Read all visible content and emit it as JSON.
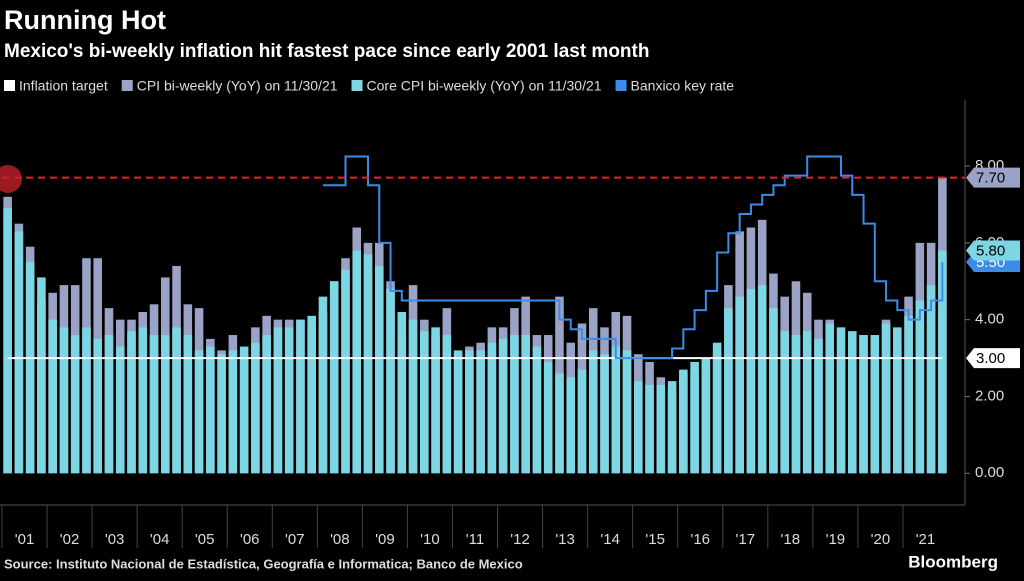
{
  "chart_data": {
    "type": "bar",
    "title": "Running Hot",
    "subtitle": "Mexico's bi-weekly inflation hit fastest pace since early 2001 last month",
    "source": "Source: Instituto Nacional de Estadística, Geografía e Informatica; Banco de Mexico",
    "brand": "Bloomberg",
    "categories": [
      "'01",
      null,
      null,
      null,
      "'02",
      null,
      null,
      null,
      "'03",
      null,
      null,
      null,
      "'04",
      null,
      null,
      null,
      "'05",
      null,
      null,
      null,
      "'06",
      null,
      null,
      null,
      "'07",
      null,
      null,
      null,
      "'08",
      null,
      null,
      null,
      "'09",
      null,
      null,
      null,
      "'10",
      null,
      null,
      null,
      "'11",
      null,
      null,
      null,
      "'12",
      null,
      null,
      null,
      "'13",
      null,
      null,
      null,
      "'14",
      null,
      null,
      null,
      "'15",
      null,
      null,
      null,
      "'16",
      null,
      null,
      null,
      "'17",
      null,
      null,
      null,
      "'18",
      null,
      null,
      null,
      "'19",
      null,
      null,
      null,
      "'20",
      null,
      null,
      null,
      "'21",
      null,
      null,
      null
    ],
    "ylim": [
      -0.8,
      9.72
    ],
    "yticks": [
      {
        "value": 0,
        "label": "0.00"
      },
      {
        "value": 2,
        "label": "2.00"
      },
      {
        "value": 4,
        "label": "4.00"
      },
      {
        "value": 6,
        "label": "6.00"
      },
      {
        "value": 8,
        "label": "8.00"
      }
    ],
    "series": [
      {
        "name": "Inflation target",
        "type": "line",
        "color": "#ffffff",
        "values": [
          3,
          3,
          3,
          3,
          3,
          3,
          3,
          3,
          3,
          3,
          3,
          3,
          3,
          3,
          3,
          3,
          3,
          3,
          3,
          3,
          3,
          3,
          3,
          3,
          3,
          3,
          3,
          3,
          3,
          3,
          3,
          3,
          3,
          3,
          3,
          3,
          3,
          3,
          3,
          3,
          3,
          3,
          3,
          3,
          3,
          3,
          3,
          3,
          3,
          3,
          3,
          3,
          3,
          3,
          3,
          3,
          3,
          3,
          3,
          3,
          3,
          3,
          3,
          3,
          3,
          3,
          3,
          3,
          3,
          3,
          3,
          3,
          3,
          3,
          3,
          3,
          3,
          3,
          3,
          3,
          3,
          3,
          3,
          3
        ],
        "value_labels": [
          null,
          null,
          null,
          null,
          null,
          null,
          null,
          null,
          null,
          null,
          null,
          null,
          null,
          null,
          null,
          null,
          null,
          null,
          null,
          null,
          null,
          null,
          null,
          null,
          null,
          null,
          null,
          null,
          null,
          null,
          null,
          null,
          null,
          null,
          null,
          null,
          null,
          null,
          null,
          null,
          null,
          null,
          null,
          null,
          null,
          null,
          null,
          null,
          null,
          null,
          null,
          null,
          null,
          null,
          null,
          null,
          null,
          null,
          null,
          null,
          null,
          null,
          null,
          null,
          null,
          null,
          null,
          null,
          null,
          null,
          null,
          null,
          null,
          null,
          null,
          null,
          null,
          null,
          null,
          null,
          null,
          null,
          null,
          "3.00"
        ]
      },
      {
        "name": "CPI bi-weekly (YoY) on 11/30/21",
        "type": "bar",
        "color": "#9aa3c6",
        "values": [
          7.2,
          6.5,
          5.9,
          4.5,
          4.7,
          4.9,
          4.9,
          5.6,
          5.6,
          4.3,
          4.0,
          4.0,
          4.2,
          4.4,
          5.1,
          5.4,
          4.4,
          4.3,
          3.5,
          3.2,
          3.6,
          3.1,
          3.8,
          4.1,
          4.0,
          4.0,
          4.0,
          3.8,
          4.2,
          5.0,
          5.6,
          6.4,
          6.0,
          6.0,
          5.0,
          3.6,
          4.9,
          4.0,
          3.6,
          4.3,
          3.1,
          3.3,
          3.4,
          3.8,
          3.8,
          4.3,
          4.6,
          3.6,
          3.6,
          4.6,
          3.4,
          3.9,
          4.3,
          3.8,
          4.2,
          4.1,
          3.1,
          2.9,
          2.5,
          2.2,
          2.6,
          2.6,
          2.9,
          3.2,
          4.9,
          6.3,
          6.4,
          6.6,
          5.2,
          4.6,
          5.0,
          4.7,
          4.0,
          4.0,
          3.0,
          2.8,
          3.6,
          2.7,
          4.0,
          3.2,
          4.6,
          6.0,
          6.0,
          7.7
        ],
        "value_labels": [
          null,
          null,
          null,
          null,
          null,
          null,
          null,
          null,
          null,
          null,
          null,
          null,
          null,
          null,
          null,
          null,
          null,
          null,
          null,
          null,
          null,
          null,
          null,
          null,
          null,
          null,
          null,
          null,
          null,
          null,
          null,
          null,
          null,
          null,
          null,
          null,
          null,
          null,
          null,
          null,
          null,
          null,
          null,
          null,
          null,
          null,
          null,
          null,
          null,
          null,
          null,
          null,
          null,
          null,
          null,
          null,
          null,
          null,
          null,
          null,
          null,
          null,
          null,
          null,
          null,
          null,
          null,
          null,
          null,
          null,
          null,
          null,
          null,
          null,
          null,
          null,
          null,
          null,
          null,
          null,
          null,
          null,
          null,
          "7.70"
        ]
      },
      {
        "name": "Core CPI bi-weekly (YoY) on 11/30/21",
        "type": "bar",
        "color": "#7dd6e3",
        "values": [
          6.9,
          6.3,
          5.5,
          5.1,
          4.0,
          3.8,
          3.6,
          3.8,
          3.5,
          3.6,
          3.3,
          3.7,
          3.8,
          3.6,
          3.6,
          3.8,
          3.6,
          3.2,
          3.3,
          3.1,
          3.2,
          3.3,
          3.4,
          3.6,
          3.8,
          3.8,
          4.0,
          4.1,
          4.6,
          5.0,
          5.3,
          5.8,
          5.7,
          5.4,
          4.8,
          4.2,
          4.0,
          3.7,
          3.8,
          3.6,
          3.2,
          3.2,
          3.2,
          3.4,
          3.5,
          3.6,
          3.6,
          3.3,
          2.9,
          2.6,
          2.5,
          2.7,
          3.2,
          3.1,
          3.3,
          3.2,
          2.4,
          2.3,
          2.3,
          2.4,
          2.7,
          2.9,
          3.0,
          3.4,
          4.3,
          4.6,
          4.8,
          4.9,
          4.3,
          3.7,
          3.6,
          3.7,
          3.5,
          3.9,
          3.8,
          3.7,
          3.6,
          3.6,
          3.9,
          3.8,
          4.1,
          4.5,
          4.9,
          5.8
        ],
        "value_labels": [
          null,
          null,
          null,
          null,
          null,
          null,
          null,
          null,
          null,
          null,
          null,
          null,
          null,
          null,
          null,
          null,
          null,
          null,
          null,
          null,
          null,
          null,
          null,
          null,
          null,
          null,
          null,
          null,
          null,
          null,
          null,
          null,
          null,
          null,
          null,
          null,
          null,
          null,
          null,
          null,
          null,
          null,
          null,
          null,
          null,
          null,
          null,
          null,
          null,
          null,
          null,
          null,
          null,
          null,
          null,
          null,
          null,
          null,
          null,
          null,
          null,
          null,
          null,
          null,
          null,
          null,
          null,
          null,
          null,
          null,
          null,
          null,
          null,
          null,
          null,
          null,
          null,
          null,
          null,
          null,
          null,
          null,
          null,
          "5.80"
        ]
      },
      {
        "name": "Banxico key rate",
        "type": "step",
        "color": "#3d8be8",
        "values": [
          null,
          null,
          null,
          null,
          null,
          null,
          null,
          null,
          null,
          null,
          null,
          null,
          null,
          null,
          null,
          null,
          null,
          null,
          null,
          null,
          null,
          null,
          null,
          null,
          null,
          null,
          null,
          null,
          7.5,
          7.5,
          8.25,
          8.25,
          7.5,
          6.0,
          4.75,
          4.5,
          4.5,
          4.5,
          4.5,
          4.5,
          4.5,
          4.5,
          4.5,
          4.5,
          4.5,
          4.5,
          4.5,
          4.5,
          4.5,
          4.0,
          3.75,
          3.5,
          3.5,
          3.5,
          3.0,
          3.0,
          3.0,
          3.0,
          3.0,
          3.25,
          3.75,
          4.25,
          4.75,
          5.75,
          6.25,
          6.75,
          7.0,
          7.25,
          7.5,
          7.75,
          7.75,
          8.25,
          8.25,
          8.25,
          7.75,
          7.25,
          6.5,
          5.0,
          4.5,
          4.25,
          4.0,
          4.25,
          4.5,
          5.5
        ],
        "value_labels": [
          null,
          null,
          null,
          null,
          null,
          null,
          null,
          null,
          null,
          null,
          null,
          null,
          null,
          null,
          null,
          null,
          null,
          null,
          null,
          null,
          null,
          null,
          null,
          null,
          null,
          null,
          null,
          null,
          null,
          null,
          null,
          null,
          null,
          null,
          null,
          null,
          null,
          null,
          null,
          null,
          null,
          null,
          null,
          null,
          null,
          null,
          null,
          null,
          null,
          null,
          null,
          null,
          null,
          null,
          null,
          null,
          null,
          null,
          null,
          null,
          null,
          null,
          null,
          null,
          null,
          null,
          null,
          null,
          null,
          null,
          null,
          null,
          null,
          null,
          null,
          null,
          null,
          null,
          null,
          null,
          null,
          null,
          null,
          "5.50"
        ]
      }
    ]
  }
}
